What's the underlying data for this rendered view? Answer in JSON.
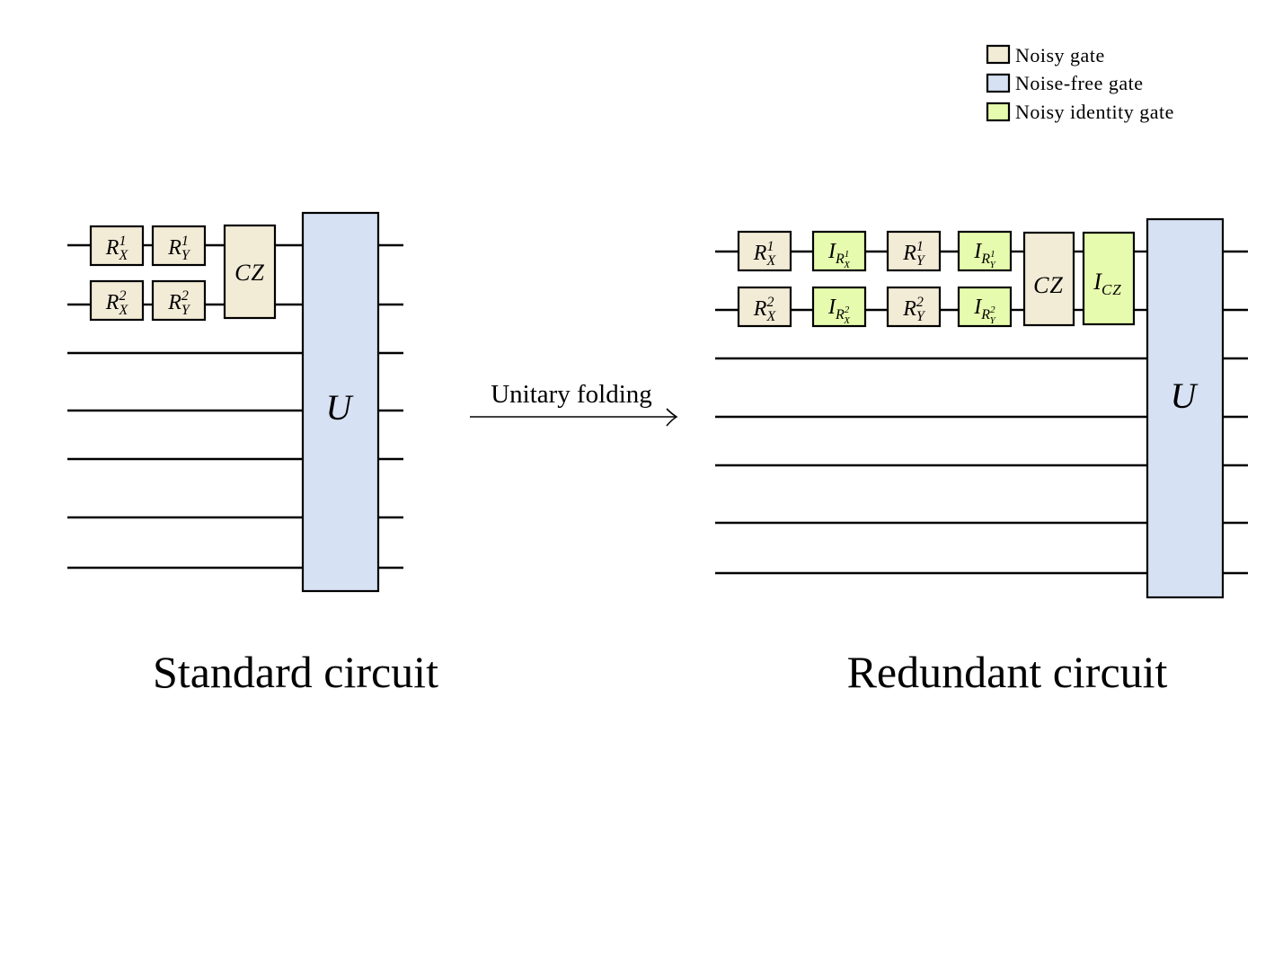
{
  "colors": {
    "noisy": "#f2ebd6",
    "noise_free": "#d6e1f3",
    "identity": "#e7fbae",
    "line": "#000000"
  },
  "legend": [
    {
      "key": "noisy",
      "label": "Noisy gate"
    },
    {
      "key": "noise_free",
      "label": "Noise-free gate"
    },
    {
      "key": "identity",
      "label": "Noisy identity gate"
    }
  ],
  "arrow": {
    "label": "Unitary folding"
  },
  "standard": {
    "caption": "Standard circuit",
    "gates": {
      "rx1": {
        "base": "R",
        "sub": "X",
        "sup": "1"
      },
      "ry1": {
        "base": "R",
        "sub": "Y",
        "sup": "1"
      },
      "rx2": {
        "base": "R",
        "sub": "X",
        "sup": "2"
      },
      "ry2": {
        "base": "R",
        "sub": "Y",
        "sup": "2"
      },
      "cz": "CZ",
      "u": "U"
    }
  },
  "redundant": {
    "caption": "Redundant circuit",
    "gates": {
      "rx1": {
        "base": "R",
        "sub": "X",
        "sup": "1"
      },
      "ry1": {
        "base": "R",
        "sub": "Y",
        "sup": "1"
      },
      "rx2": {
        "base": "R",
        "sub": "X",
        "sup": "2"
      },
      "ry2": {
        "base": "R",
        "sub": "Y",
        "sup": "2"
      },
      "i_rx1": {
        "base": "I",
        "sub_base": "R",
        "sub_sub": "X",
        "sub_sup": "1"
      },
      "i_ry1": {
        "base": "I",
        "sub_base": "R",
        "sub_sub": "Y",
        "sub_sup": "1"
      },
      "i_rx2": {
        "base": "I",
        "sub_base": "R",
        "sub_sub": "X",
        "sub_sup": "2"
      },
      "i_ry2": {
        "base": "I",
        "sub_base": "R",
        "sub_sub": "Y",
        "sub_sup": "2"
      },
      "cz": "CZ",
      "i_cz": {
        "base": "I",
        "sub": "CZ"
      },
      "u": "U"
    }
  }
}
